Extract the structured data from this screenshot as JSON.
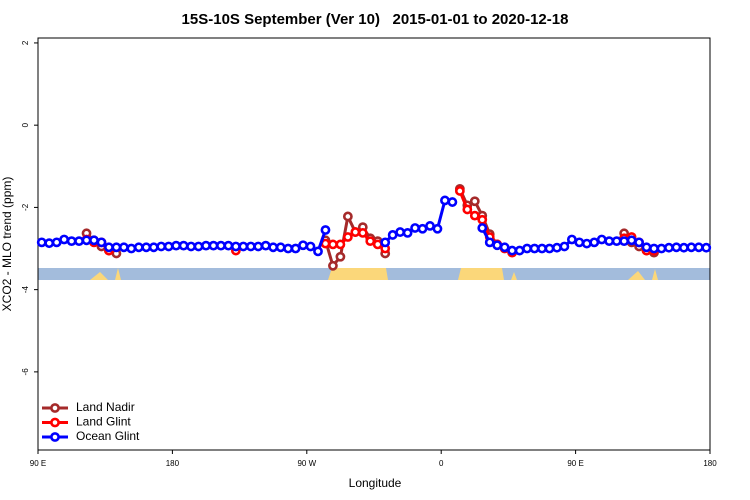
{
  "chart_data": {
    "type": "line",
    "title": "15S-10S September (Ver 10)   2015-01-01 to 2020-12-18",
    "xlabel": "Longitude",
    "ylabel": "XCO2 - MLO trend (ppm)",
    "xlim": [
      90,
      540
    ],
    "ylim": [
      -7.9,
      2.12
    ],
    "xticks": [
      {
        "value": 90,
        "label": "90 E"
      },
      180,
      {
        "value": 270,
        "label": "90 W"
      },
      {
        "value": 360,
        "label": "0"
      },
      {
        "value": 450,
        "label": "90 E"
      },
      {
        "value": 540,
        "label": "180"
      }
    ],
    "yticks": [
      2,
      0,
      -2,
      -4,
      -6
    ],
    "legend": "bottom-left",
    "x": [
      92.5,
      97.5,
      102.5,
      107.5,
      112.5,
      117.5,
      122.5,
      127.5,
      132.5,
      137.5,
      142.5,
      147.5,
      152.5,
      157.5,
      162.5,
      167.5,
      172.5,
      177.5,
      182.5,
      187.5,
      192.5,
      197.5,
      202.5,
      207.5,
      212.5,
      217.5,
      222.5,
      227.5,
      232.5,
      237.5,
      242.5,
      247.5,
      252.5,
      257.5,
      262.5,
      267.5,
      272.5,
      277.5,
      282.5,
      287.5,
      292.5,
      297.5,
      302.5,
      307.5,
      312.5,
      317.5,
      322.5,
      327.5,
      332.5,
      337.5,
      342.5,
      347.5,
      352.5,
      357.5,
      362.5,
      367.5,
      372.5,
      377.5,
      382.5,
      387.5,
      392.5,
      397.5,
      402.5,
      407.5,
      412.5,
      417.5,
      422.5,
      427.5,
      432.5,
      437.5,
      442.5,
      447.5,
      452.5,
      457.5,
      462.5,
      467.5,
      472.5,
      477.5,
      482.5,
      487.5,
      492.5,
      497.5,
      502.5,
      507.5,
      512.5,
      517.5,
      522.5,
      527.5,
      532.5,
      537.5
    ],
    "series": [
      {
        "name": "Land Nadir",
        "color": "#a52a2a",
        "values": [
          null,
          null,
          null,
          null,
          null,
          null,
          -2.63,
          -2.8,
          -2.95,
          -3.05,
          -3.12,
          null,
          null,
          null,
          null,
          null,
          null,
          null,
          null,
          null,
          null,
          null,
          null,
          null,
          null,
          null,
          null,
          null,
          null,
          null,
          null,
          null,
          null,
          null,
          null,
          null,
          null,
          null,
          -2.8,
          -3.42,
          -3.2,
          -2.22,
          -2.6,
          -2.48,
          -2.75,
          -2.82,
          -3.12,
          null,
          null,
          null,
          null,
          null,
          null,
          null,
          null,
          null,
          -1.55,
          -1.95,
          -1.85,
          -2.2,
          -2.65,
          -2.9,
          null,
          null,
          null,
          null,
          null,
          null,
          null,
          null,
          null,
          null,
          null,
          null,
          null,
          null,
          null,
          null,
          -2.63,
          -2.85,
          -2.95,
          -3.05,
          -3.1,
          null,
          null,
          null,
          null,
          null,
          null,
          null
        ]
      },
      {
        "name": "Land Glint",
        "color": "#ff0000",
        "values": [
          null,
          null,
          null,
          null,
          null,
          null,
          -2.78,
          -2.85,
          -2.85,
          -3.05,
          null,
          null,
          null,
          null,
          null,
          null,
          null,
          null,
          null,
          null,
          null,
          null,
          null,
          null,
          null,
          null,
          -3.05,
          null,
          null,
          null,
          null,
          null,
          null,
          null,
          null,
          null,
          null,
          null,
          -2.88,
          -2.9,
          -2.9,
          -2.72,
          -2.6,
          -2.62,
          -2.82,
          -2.9,
          -3.0,
          null,
          null,
          null,
          null,
          null,
          null,
          null,
          null,
          null,
          -1.6,
          -2.05,
          -2.2,
          -2.3,
          -2.72,
          -2.9,
          -3.0,
          -3.1,
          null,
          null,
          null,
          null,
          null,
          null,
          null,
          null,
          null,
          null,
          null,
          null,
          null,
          null,
          -2.75,
          -2.72,
          -2.85,
          -3.05,
          -3.05,
          null,
          null,
          null,
          null,
          null,
          null,
          null
        ]
      },
      {
        "name": "Ocean Glint",
        "color": "#0000ff",
        "values": [
          -2.85,
          -2.87,
          -2.85,
          -2.78,
          -2.82,
          -2.82,
          -2.8,
          -2.8,
          -2.85,
          -2.97,
          -2.97,
          -2.97,
          -3.0,
          -2.97,
          -2.97,
          -2.97,
          -2.95,
          -2.95,
          -2.93,
          -2.93,
          -2.95,
          -2.95,
          -2.93,
          -2.93,
          -2.93,
          -2.93,
          -2.95,
          -2.95,
          -2.95,
          -2.95,
          -2.93,
          -2.97,
          -2.97,
          -3.0,
          -3.0,
          -2.92,
          -2.95,
          -3.07,
          -2.55,
          null,
          null,
          null,
          null,
          null,
          null,
          null,
          -2.85,
          -2.67,
          -2.6,
          -2.62,
          -2.5,
          -2.52,
          -2.45,
          -2.52,
          -1.83,
          -1.87,
          null,
          null,
          null,
          -2.5,
          -2.85,
          -2.92,
          -2.97,
          -3.05,
          -3.05,
          -3.0,
          -3.0,
          -3.0,
          -3.0,
          -2.98,
          -2.95,
          -2.78,
          -2.85,
          -2.88,
          -2.85,
          -2.78,
          -2.82,
          -2.82,
          -2.82,
          -2.8,
          -2.85,
          -2.97,
          -3.0,
          -3.0,
          -2.98,
          -2.97,
          -2.98,
          -2.97,
          -2.97,
          -2.98
        ]
      }
    ]
  }
}
